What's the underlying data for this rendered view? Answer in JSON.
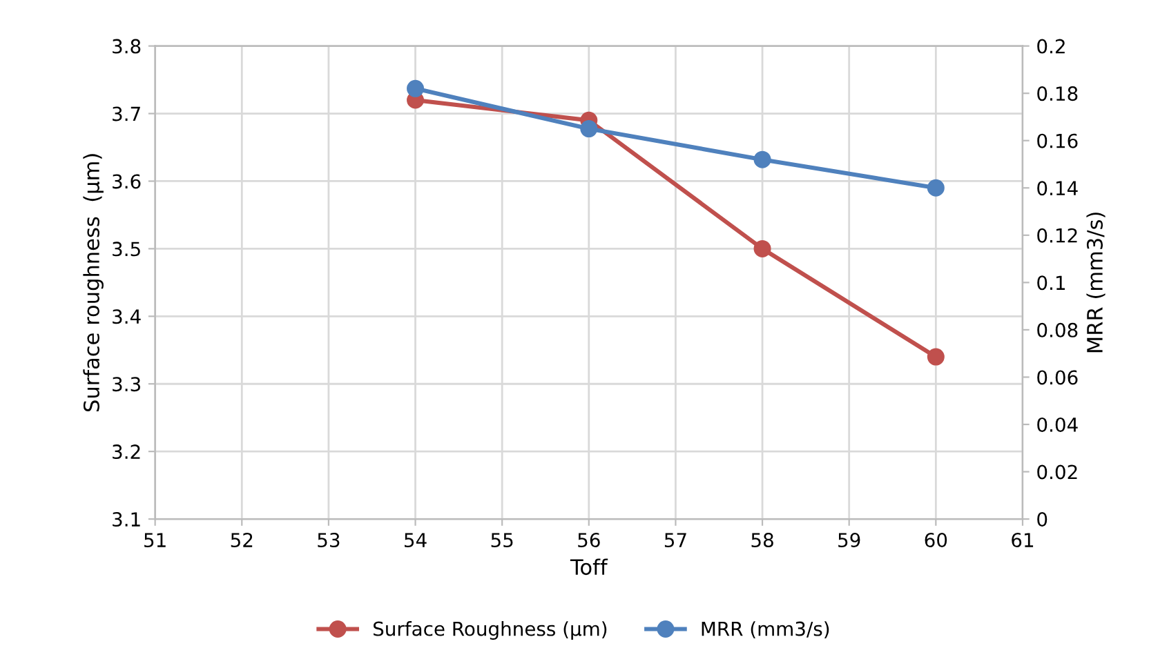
{
  "chart_data": {
    "type": "line",
    "xlabel": "Toff",
    "ylabel": "Surface roughness  (µm)",
    "y2label": "MRR (mm3/s)",
    "x": [
      54,
      56,
      58,
      60
    ],
    "series": [
      {
        "name": "Surface Roughness (µm)",
        "color": "#c0504d",
        "values": [
          3.72,
          3.69,
          3.5,
          3.34
        ]
      },
      {
        "name": "MRR (mm3/s)",
        "color": "#4f81bd",
        "values": [
          0.182,
          0.165,
          0.152,
          0.14
        ],
        "axis": "y2"
      }
    ],
    "xlim": [
      51,
      61
    ],
    "xticks": [
      51,
      52,
      53,
      54,
      55,
      56,
      57,
      58,
      59,
      60,
      61
    ],
    "ylim": [
      3.1,
      3.8
    ],
    "yticks": [
      3.1,
      3.2,
      3.3,
      3.4,
      3.5,
      3.6,
      3.7,
      3.8
    ],
    "y2lim": [
      0,
      0.2
    ],
    "y2ticks": [
      0,
      0.02,
      0.04,
      0.06,
      0.08,
      0.1,
      0.12,
      0.14,
      0.16,
      0.18,
      0.2
    ],
    "grid": true,
    "legend": "bottom",
    "marker": "circle",
    "line_style": "solid"
  }
}
